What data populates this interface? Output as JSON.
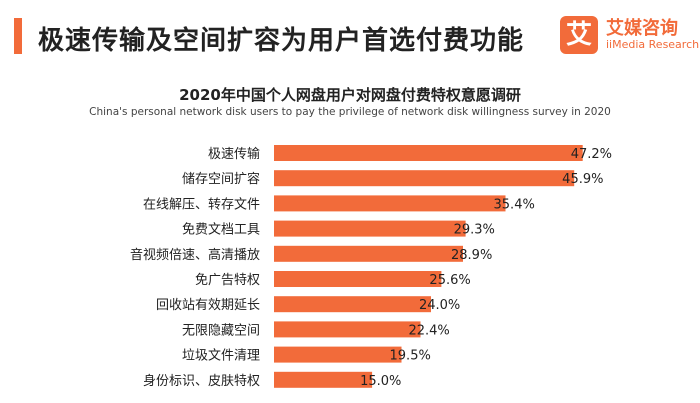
{
  "header": {
    "title": "极速传输及空间扩容为用户首选付费功能"
  },
  "logo": {
    "mark": "艾",
    "name_cn": "艾媒咨询",
    "name_en": "iiMedia Research"
  },
  "colors": {
    "accent": "#f26b3a",
    "bar": "#f26b3a",
    "text": "#222222"
  },
  "chart_data": {
    "type": "bar",
    "orientation": "horizontal",
    "title": "2020年中国个人网盘用户对网盘付费特权意愿调研",
    "subtitle": "China's personal network disk users to pay the privilege of network disk willingness survey in 2020",
    "categories": [
      "极速传输",
      "储存空间扩容",
      "在线解压、转存文件",
      "免费文档工具",
      "音视频倍速、高清播放",
      "免广告特权",
      "回收站有效期延长",
      "无限隐藏空间",
      "垃圾文件清理",
      "身份标识、皮肤特权"
    ],
    "values": [
      47.2,
      45.9,
      35.4,
      29.3,
      28.9,
      25.6,
      24.0,
      22.4,
      19.5,
      15.0
    ],
    "value_labels": [
      "47.2%",
      "45.9%",
      "35.4%",
      "29.3%",
      "28.9%",
      "25.6%",
      "24.0%",
      "22.4%",
      "19.5%",
      "15.0%"
    ],
    "xlim": [
      0,
      50
    ],
    "unit": "%",
    "grid": false,
    "legend": "none"
  }
}
